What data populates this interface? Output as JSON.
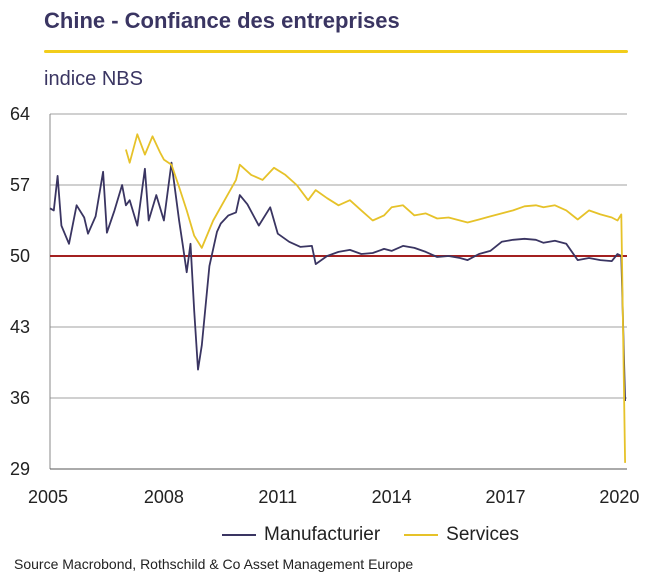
{
  "title": "Chine - Confiance des entreprises",
  "subtitle": "indice NBS",
  "source": "Source Macrobond,  Rothschild & Co Asset Management  Europe",
  "colors": {
    "manufacturing": "#3a3562",
    "services": "#e6c229",
    "reference": "#a32020",
    "title_rule": "#f2cd1b",
    "grid": "#a0a0a0"
  },
  "chart_data": {
    "type": "line",
    "xlim": [
      2005,
      2020.2
    ],
    "ylim": [
      29,
      64
    ],
    "x_ticks": [
      "2005",
      "2008",
      "2011",
      "2014",
      "2017",
      "2020"
    ],
    "y_ticks": [
      "64",
      "57",
      "50",
      "43",
      "36",
      "29"
    ],
    "grid": true,
    "legend_position": "bottom",
    "reference_line": 50,
    "series": [
      {
        "name": "Manufacturier",
        "key": "manufacturing",
        "x": [
          2005.0,
          2005.1,
          2005.2,
          2005.3,
          2005.5,
          2005.7,
          2005.9,
          2006.0,
          2006.2,
          2006.4,
          2006.5,
          2006.7,
          2006.9,
          2007.0,
          2007.1,
          2007.3,
          2007.5,
          2007.6,
          2007.8,
          2008.0,
          2008.2,
          2008.4,
          2008.5,
          2008.6,
          2008.7,
          2008.8,
          2008.9,
          2009.0,
          2009.2,
          2009.4,
          2009.5,
          2009.7,
          2009.9,
          2010.0,
          2010.2,
          2010.5,
          2010.8,
          2011.0,
          2011.3,
          2011.6,
          2011.9,
          2012.0,
          2012.3,
          2012.6,
          2012.9,
          2013.2,
          2013.5,
          2013.8,
          2014.0,
          2014.3,
          2014.6,
          2014.9,
          2015.2,
          2015.5,
          2015.8,
          2016.0,
          2016.3,
          2016.6,
          2016.9,
          2017.2,
          2017.5,
          2017.8,
          2018.0,
          2018.3,
          2018.6,
          2018.9,
          2019.2,
          2019.5,
          2019.8,
          2019.95,
          2020.05,
          2020.15
        ],
        "y": [
          54.7,
          54.5,
          57.9,
          53.0,
          51.2,
          55.0,
          53.8,
          52.2,
          53.9,
          58.3,
          52.3,
          54.5,
          57.0,
          55.0,
          55.5,
          53.0,
          58.6,
          53.5,
          56.0,
          53.5,
          59.2,
          53.5,
          51.0,
          48.4,
          51.2,
          44.6,
          38.8,
          41.2,
          49.0,
          52.4,
          53.2,
          54.0,
          54.3,
          56.0,
          55.1,
          53.0,
          54.8,
          52.2,
          51.4,
          50.9,
          51.0,
          49.2,
          50.0,
          50.4,
          50.6,
          50.2,
          50.3,
          50.7,
          50.5,
          51.0,
          50.8,
          50.4,
          49.9,
          50.0,
          49.8,
          49.6,
          50.2,
          50.5,
          51.4,
          51.6,
          51.7,
          51.6,
          51.3,
          51.5,
          51.2,
          49.6,
          49.8,
          49.6,
          49.5,
          50.2,
          50.0,
          35.7
        ]
      },
      {
        "name": "Services",
        "key": "services",
        "x": [
          2007.0,
          2007.1,
          2007.3,
          2007.5,
          2007.7,
          2007.9,
          2008.0,
          2008.2,
          2008.4,
          2008.6,
          2008.8,
          2009.0,
          2009.3,
          2009.6,
          2009.9,
          2010.0,
          2010.3,
          2010.6,
          2010.9,
          2011.2,
          2011.5,
          2011.8,
          2012.0,
          2012.3,
          2012.6,
          2012.9,
          2013.2,
          2013.5,
          2013.8,
          2014.0,
          2014.3,
          2014.6,
          2014.9,
          2015.2,
          2015.5,
          2015.8,
          2016.0,
          2016.3,
          2016.6,
          2016.9,
          2017.2,
          2017.5,
          2017.8,
          2018.0,
          2018.3,
          2018.6,
          2018.9,
          2019.2,
          2019.5,
          2019.8,
          2019.95,
          2020.05,
          2020.15
        ],
        "y": [
          60.5,
          59.2,
          62.0,
          60.0,
          61.8,
          60.2,
          59.5,
          59.0,
          56.8,
          54.5,
          52.0,
          50.8,
          53.5,
          55.5,
          57.5,
          59.0,
          58.0,
          57.5,
          58.7,
          58.0,
          57.0,
          55.5,
          56.5,
          55.7,
          55.0,
          55.5,
          54.5,
          53.5,
          54.0,
          54.8,
          55.0,
          54.0,
          54.2,
          53.7,
          53.8,
          53.5,
          53.3,
          53.6,
          53.9,
          54.2,
          54.5,
          54.9,
          55.0,
          54.8,
          55.0,
          54.5,
          53.6,
          54.5,
          54.1,
          53.8,
          53.5,
          54.1,
          29.6
        ]
      }
    ]
  }
}
